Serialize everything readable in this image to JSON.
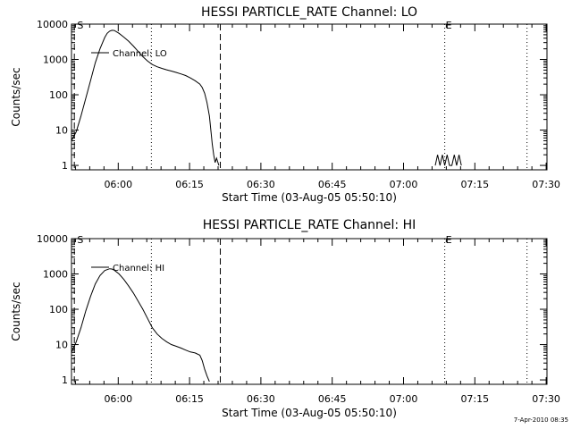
{
  "footer": {
    "timestamp": "7-Apr-2010 08:35"
  },
  "chart_data": [
    {
      "type": "line",
      "title": "HESSI PARTICLE_RATE Channel: LO",
      "xlabel": "Start Time (03-Aug-05 05:50:10)",
      "ylabel": "Counts/sec",
      "y_scale": "log",
      "xlim_min_from_start": [
        0,
        100
      ],
      "ylim": [
        0.75,
        10000
      ],
      "x_tick_labels": [
        "06:00",
        "06:15",
        "06:30",
        "06:45",
        "07:00",
        "07:15",
        "07:30"
      ],
      "x_tick_minutes": [
        9.83,
        24.83,
        39.83,
        54.83,
        69.83,
        84.83,
        99.83
      ],
      "y_tick_labels": [
        "1",
        "10",
        "100",
        "1000",
        "10000"
      ],
      "y_tick_values": [
        1,
        10,
        100,
        1000,
        10000
      ],
      "legend": {
        "label": "Channel: LO",
        "position": "top-left"
      },
      "markers": [
        {
          "label": "S",
          "minute": 1.0,
          "style": "dashed"
        },
        {
          "label": "E",
          "minute": 78.5,
          "style": "dotted"
        }
      ],
      "vlines": [
        {
          "minute": 0.6,
          "style": "dashed"
        },
        {
          "minute": 16.8,
          "style": "dotted"
        },
        {
          "minute": 31.3,
          "style": "dashed"
        },
        {
          "minute": 78.5,
          "style": "dotted"
        },
        {
          "minute": 95.8,
          "style": "dotted"
        }
      ],
      "series": [
        {
          "x": [
            0,
            1,
            2,
            3,
            4,
            5,
            6,
            7,
            7.5,
            8,
            8.5,
            9,
            10,
            11,
            12,
            13,
            14,
            15,
            16,
            17,
            18,
            19,
            20,
            21,
            22,
            23,
            24,
            25,
            26,
            27,
            27.5,
            28,
            28.5,
            29,
            29.3,
            29.6,
            29.9,
            30.2,
            30.5,
            31
          ],
          "y": [
            5,
            9,
            25,
            80,
            250,
            800,
            2000,
            4200,
            5500,
            6300,
            6700,
            6600,
            5500,
            4300,
            3300,
            2400,
            1700,
            1200,
            900,
            720,
            620,
            560,
            510,
            470,
            430,
            390,
            350,
            300,
            250,
            200,
            160,
            110,
            60,
            25,
            10,
            4,
            2,
            1.2,
            1.6,
            1
          ]
        },
        {
          "x": [
            76.5,
            77.0,
            77.5,
            78.0,
            78.5,
            79.0,
            79.5,
            80.0,
            80.5,
            81.0,
            81.5,
            82.0
          ],
          "y": [
            1,
            2,
            1,
            2,
            1,
            2,
            1,
            1,
            2,
            1,
            2,
            1
          ]
        }
      ]
    },
    {
      "type": "line",
      "title": "HESSI PARTICLE_RATE Channel: HI",
      "xlabel": "Start Time (03-Aug-05 05:50:10)",
      "ylabel": "Counts/sec",
      "y_scale": "log",
      "xlim_min_from_start": [
        0,
        100
      ],
      "ylim": [
        0.75,
        10000
      ],
      "x_tick_labels": [
        "06:00",
        "06:15",
        "06:30",
        "06:45",
        "07:00",
        "07:15",
        "07:30"
      ],
      "x_tick_minutes": [
        9.83,
        24.83,
        39.83,
        54.83,
        69.83,
        84.83,
        99.83
      ],
      "y_tick_labels": [
        "1",
        "10",
        "100",
        "1000",
        "10000"
      ],
      "y_tick_values": [
        1,
        10,
        100,
        1000,
        10000
      ],
      "legend": {
        "label": "Channel: HI",
        "position": "top-left"
      },
      "markers": [
        {
          "label": "S",
          "minute": 1.0,
          "style": "dashed"
        },
        {
          "label": "E",
          "minute": 78.5,
          "style": "dotted"
        }
      ],
      "vlines": [
        {
          "minute": 0.6,
          "style": "dashed"
        },
        {
          "minute": 16.8,
          "style": "dotted"
        },
        {
          "minute": 31.3,
          "style": "dashed"
        },
        {
          "minute": 78.5,
          "style": "dotted"
        },
        {
          "minute": 95.8,
          "style": "dotted"
        }
      ],
      "series": [
        {
          "x": [
            0,
            1,
            2,
            3,
            4,
            5,
            6,
            7,
            8,
            8.5,
            9,
            10,
            11,
            12,
            13,
            14,
            15,
            16,
            17,
            18,
            19,
            20,
            21,
            22,
            23,
            24,
            25,
            26,
            27,
            27.5,
            28,
            28.5,
            29
          ],
          "y": [
            6,
            12,
            30,
            90,
            230,
            520,
            900,
            1250,
            1400,
            1380,
            1280,
            1000,
            700,
            460,
            290,
            170,
            100,
            55,
            30,
            20,
            15,
            12,
            10,
            9,
            8,
            7,
            6.2,
            5.8,
            5,
            3.5,
            2,
            1.3,
            0.9
          ]
        }
      ]
    }
  ]
}
